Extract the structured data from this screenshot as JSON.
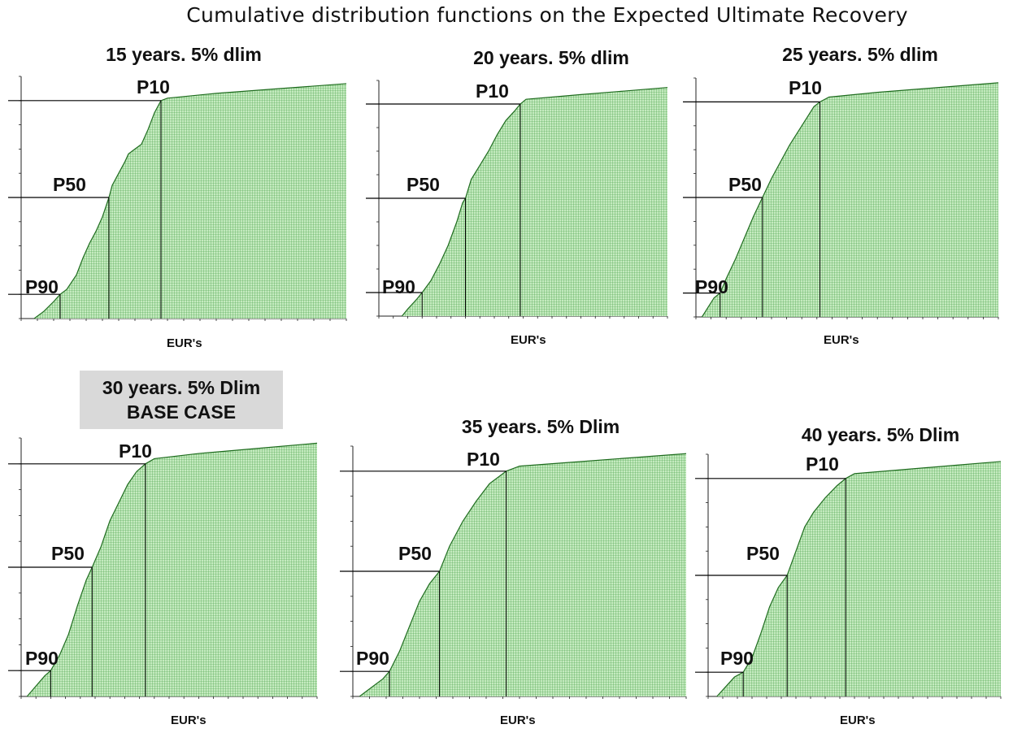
{
  "title": "Cumulative distribution functions on the Expected Ultimate Recovery",
  "colors": {
    "fill": "#c5ebc0",
    "grid": "#3d9a3d",
    "line": "#1d6b1d",
    "axis": "#222222",
    "ref": "#000000"
  },
  "chart_data": [
    {
      "type": "area",
      "title": "15 years. 5% dlim",
      "xlabel": "EUR's",
      "ylim": [
        0,
        100
      ],
      "markers": [
        {
          "label": "P90",
          "y": 10
        },
        {
          "label": "P50",
          "y": 50
        },
        {
          "label": "P10",
          "y": 90
        }
      ],
      "points": [
        [
          0.04,
          0
        ],
        [
          0.07,
          3
        ],
        [
          0.1,
          7
        ],
        [
          0.12,
          10
        ],
        [
          0.14,
          12
        ],
        [
          0.17,
          18
        ],
        [
          0.19,
          25
        ],
        [
          0.21,
          31
        ],
        [
          0.23,
          36
        ],
        [
          0.25,
          42
        ],
        [
          0.27,
          50
        ],
        [
          0.28,
          55
        ],
        [
          0.3,
          60
        ],
        [
          0.32,
          65
        ],
        [
          0.33,
          68
        ],
        [
          0.35,
          70
        ],
        [
          0.37,
          72
        ],
        [
          0.39,
          78
        ],
        [
          0.41,
          85
        ],
        [
          0.43,
          90
        ],
        [
          0.45,
          91
        ],
        [
          0.6,
          93
        ],
        [
          0.8,
          95
        ],
        [
          1,
          97
        ]
      ]
    },
    {
      "type": "area",
      "title": "20 years. 5% dlim",
      "xlabel": "EUR's",
      "ylim": [
        0,
        100
      ],
      "markers": [
        {
          "label": "P90",
          "y": 10
        },
        {
          "label": "P50",
          "y": 50
        },
        {
          "label": "P10",
          "y": 90
        }
      ],
      "points": [
        [
          0.08,
          0
        ],
        [
          0.1,
          3
        ],
        [
          0.13,
          7
        ],
        [
          0.15,
          10
        ],
        [
          0.18,
          15
        ],
        [
          0.21,
          22
        ],
        [
          0.24,
          30
        ],
        [
          0.27,
          40
        ],
        [
          0.29,
          48
        ],
        [
          0.3,
          50
        ],
        [
          0.32,
          58
        ],
        [
          0.35,
          64
        ],
        [
          0.38,
          70
        ],
        [
          0.41,
          77
        ],
        [
          0.44,
          83
        ],
        [
          0.47,
          87
        ],
        [
          0.49,
          90
        ],
        [
          0.51,
          92
        ],
        [
          0.7,
          94
        ],
        [
          0.85,
          95.5
        ],
        [
          1,
          97
        ]
      ]
    },
    {
      "type": "area",
      "title": "25 years. 5% dlim",
      "xlabel": "EUR's",
      "ylim": [
        0,
        100
      ],
      "markers": [
        {
          "label": "P90",
          "y": 10
        },
        {
          "label": "P50",
          "y": 50
        },
        {
          "label": "P10",
          "y": 90
        }
      ],
      "points": [
        [
          0.02,
          0
        ],
        [
          0.04,
          4
        ],
        [
          0.06,
          8
        ],
        [
          0.08,
          10
        ],
        [
          0.1,
          16
        ],
        [
          0.13,
          24
        ],
        [
          0.16,
          33
        ],
        [
          0.19,
          42
        ],
        [
          0.22,
          50
        ],
        [
          0.25,
          58
        ],
        [
          0.28,
          65
        ],
        [
          0.31,
          72
        ],
        [
          0.34,
          78
        ],
        [
          0.37,
          84
        ],
        [
          0.39,
          88
        ],
        [
          0.41,
          90
        ],
        [
          0.44,
          92
        ],
        [
          0.6,
          94
        ],
        [
          0.8,
          96
        ],
        [
          1,
          98
        ]
      ]
    },
    {
      "type": "area",
      "title": "30 years. 5% Dlim",
      "subtitle": "BASE CASE",
      "xlabel": "EUR's",
      "ylim": [
        0,
        100
      ],
      "markers": [
        {
          "label": "P90",
          "y": 10
        },
        {
          "label": "P50",
          "y": 50
        },
        {
          "label": "P10",
          "y": 90
        }
      ],
      "points": [
        [
          0.02,
          0
        ],
        [
          0.05,
          4
        ],
        [
          0.08,
          8
        ],
        [
          0.1,
          10
        ],
        [
          0.13,
          16
        ],
        [
          0.16,
          24
        ],
        [
          0.19,
          35
        ],
        [
          0.22,
          45
        ],
        [
          0.24,
          50
        ],
        [
          0.27,
          58
        ],
        [
          0.3,
          68
        ],
        [
          0.33,
          75
        ],
        [
          0.36,
          82
        ],
        [
          0.39,
          87
        ],
        [
          0.42,
          90
        ],
        [
          0.45,
          92
        ],
        [
          0.6,
          94
        ],
        [
          0.8,
          96
        ],
        [
          1,
          98
        ]
      ]
    },
    {
      "type": "area",
      "title": "35 years. 5% Dlim",
      "xlabel": "EUR's",
      "ylim": [
        0,
        100
      ],
      "markers": [
        {
          "label": "P90",
          "y": 10
        },
        {
          "label": "P50",
          "y": 50
        },
        {
          "label": "P10",
          "y": 90
        }
      ],
      "points": [
        [
          0.02,
          0
        ],
        [
          0.05,
          3
        ],
        [
          0.09,
          7
        ],
        [
          0.11,
          10
        ],
        [
          0.14,
          18
        ],
        [
          0.17,
          28
        ],
        [
          0.2,
          38
        ],
        [
          0.23,
          45
        ],
        [
          0.26,
          50
        ],
        [
          0.29,
          60
        ],
        [
          0.33,
          70
        ],
        [
          0.37,
          78
        ],
        [
          0.41,
          85
        ],
        [
          0.44,
          88
        ],
        [
          0.46,
          90
        ],
        [
          0.5,
          92
        ],
        [
          0.7,
          94
        ],
        [
          0.85,
          95.5
        ],
        [
          1,
          97
        ]
      ]
    },
    {
      "type": "area",
      "title": "40 years. 5% Dlim",
      "xlabel": "EUR's",
      "ylim": [
        0,
        100
      ],
      "markers": [
        {
          "label": "P90",
          "y": 10
        },
        {
          "label": "P50",
          "y": 50
        },
        {
          "label": "P10",
          "y": 90
        }
      ],
      "points": [
        [
          0.03,
          0
        ],
        [
          0.06,
          4
        ],
        [
          0.09,
          8
        ],
        [
          0.12,
          10
        ],
        [
          0.15,
          16
        ],
        [
          0.18,
          26
        ],
        [
          0.21,
          37
        ],
        [
          0.24,
          45
        ],
        [
          0.27,
          50
        ],
        [
          0.3,
          60
        ],
        [
          0.33,
          70
        ],
        [
          0.36,
          76
        ],
        [
          0.4,
          82
        ],
        [
          0.44,
          87
        ],
        [
          0.47,
          90
        ],
        [
          0.5,
          92
        ],
        [
          0.7,
          94
        ],
        [
          0.85,
          95.5
        ],
        [
          1,
          97
        ]
      ]
    }
  ]
}
